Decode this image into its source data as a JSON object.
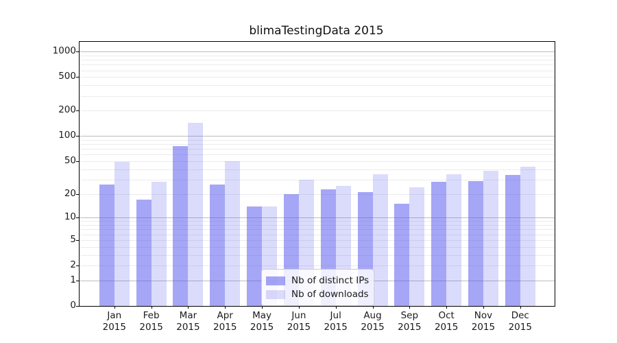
{
  "figure": {
    "background": "#ffffff",
    "text_color": "#1a1a1a"
  },
  "chart_data": {
    "type": "bar",
    "title": "blimaTestingData 2015",
    "categories": [
      "Jan",
      "Feb",
      "Mar",
      "Apr",
      "May",
      "Jun",
      "Jul",
      "Aug",
      "Sep",
      "Oct",
      "Nov",
      "Dec"
    ],
    "year_label": "2015",
    "series": [
      {
        "name": "Nb of distinct IPs",
        "color": "rgba(85,85,238,0.52)",
        "values": [
          26,
          17,
          76,
          26,
          14,
          20,
          23,
          21,
          15,
          28,
          29,
          34
        ]
      },
      {
        "name": "Nb of downloads",
        "color": "rgba(85,85,238,0.21)",
        "values": [
          49,
          28,
          145,
          50,
          14,
          30,
          25,
          35,
          24,
          35,
          38,
          43
        ]
      }
    ],
    "xlabel": "",
    "ylabel": "",
    "yscale": "log10(value+1)",
    "yticks": [
      0,
      1,
      2,
      5,
      10,
      20,
      50,
      100,
      200,
      500,
      1000
    ],
    "minor_grid_values": [
      1,
      2,
      3,
      4,
      5,
      6,
      7,
      8,
      9,
      10,
      20,
      30,
      40,
      50,
      60,
      70,
      80,
      90,
      100,
      200,
      300,
      400,
      500,
      600,
      700,
      800,
      900,
      1000
    ],
    "major_grid_values": [
      1,
      10,
      100,
      1000
    ],
    "ylim": [
      0,
      1300
    ],
    "grid": "horizontal major+minor",
    "legend_position": "lower center"
  },
  "colors": {
    "grid_major": "#bdbdbd",
    "grid_minor": "#ebebeb",
    "spine": "#000000",
    "legend_border": "#cccccc"
  }
}
